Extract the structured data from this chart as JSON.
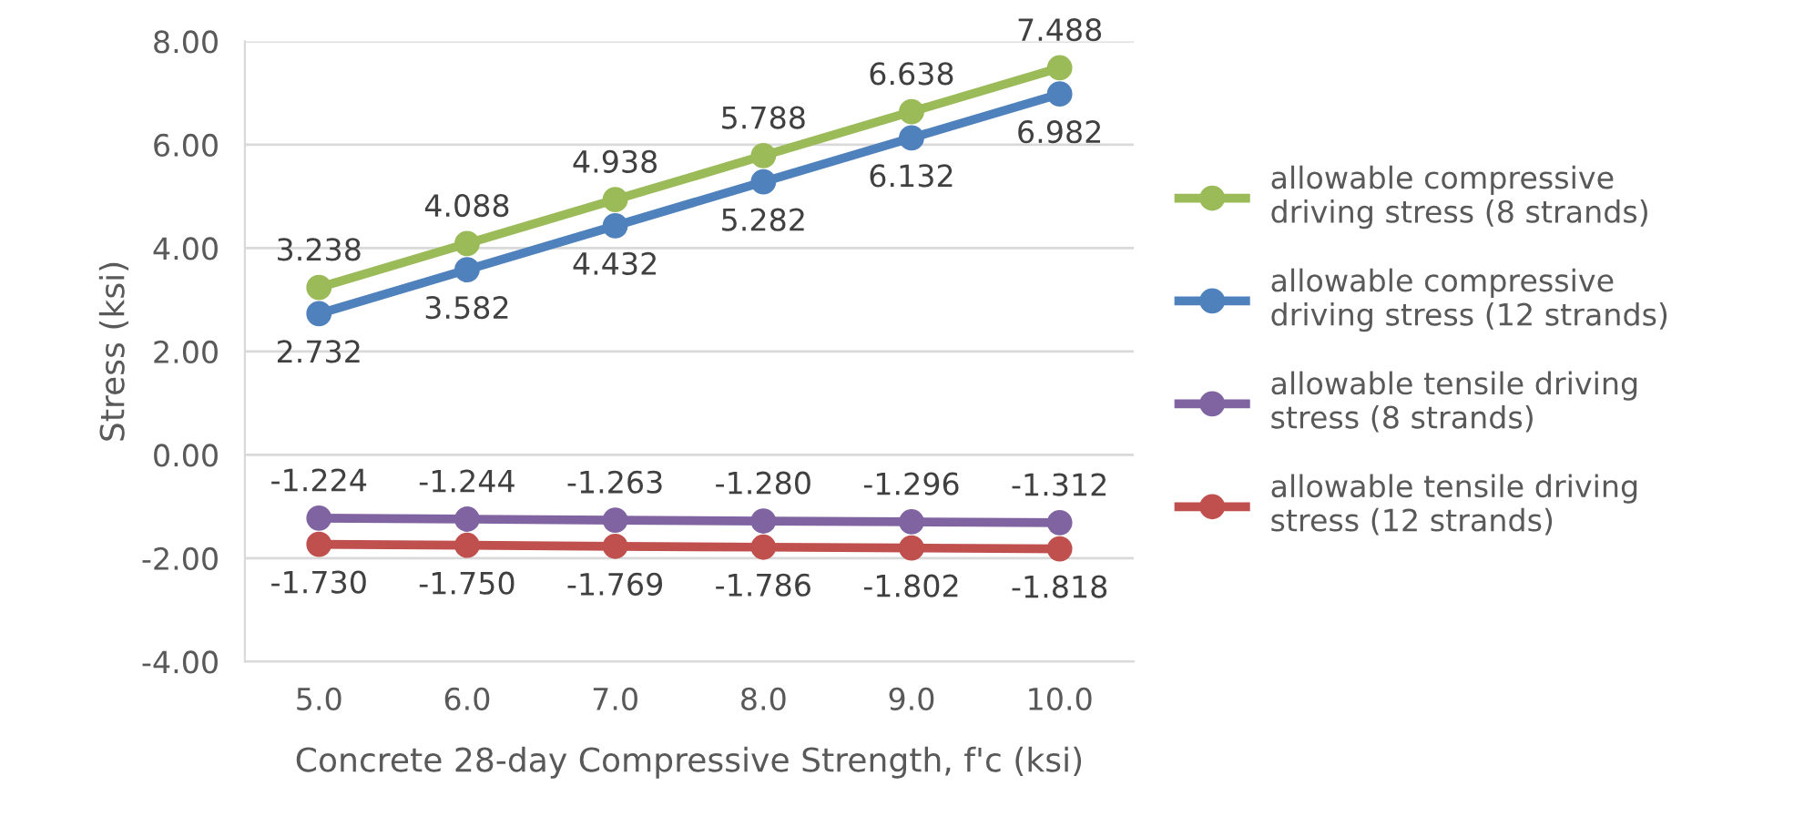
{
  "chart_data": {
    "type": "line",
    "xlabel": "Concrete 28-day Compressive Strength, f'c (ksi)",
    "ylabel": "Stress (ksi)",
    "categories": [
      "5.0",
      "6.0",
      "7.0",
      "8.0",
      "9.0",
      "10.0"
    ],
    "series": [
      {
        "name": "allowable compressive driving stress (8 strands)",
        "color": "#9bbb59",
        "values": [
          3.238,
          4.088,
          4.938,
          5.788,
          6.638,
          7.488
        ],
        "value_labels": [
          "3.238",
          "4.088",
          "4.938",
          "5.788",
          "6.638",
          "7.488"
        ]
      },
      {
        "name": "allowable compressive driving stress (12 strands)",
        "color": "#4f81bd",
        "values": [
          2.732,
          3.582,
          4.432,
          5.282,
          6.132,
          6.982
        ],
        "value_labels": [
          "2.732",
          "3.582",
          "4.432",
          "5.282",
          "6.132",
          "6.982"
        ]
      },
      {
        "name": "allowable tensile driving stress (8 strands)",
        "color": "#8064a2",
        "values": [
          -1.224,
          -1.244,
          -1.263,
          -1.28,
          -1.296,
          -1.312
        ],
        "value_labels": [
          "-1.224",
          "-1.244",
          "-1.263",
          "-1.280",
          "-1.296",
          "-1.312"
        ]
      },
      {
        "name": "allowable tensile driving stress (12 strands)",
        "color": "#c0504d",
        "values": [
          -1.73,
          -1.75,
          -1.769,
          -1.786,
          -1.802,
          -1.818
        ],
        "value_labels": [
          "-1.730",
          "-1.750",
          "-1.769",
          "-1.786",
          "-1.802",
          "-1.818"
        ]
      }
    ],
    "ylim": [
      -4,
      8
    ],
    "yticks": [
      {
        "value": -4,
        "label": "-4.00"
      },
      {
        "value": -2,
        "label": "-2.00"
      },
      {
        "value": 0,
        "label": "0.00"
      },
      {
        "value": 2,
        "label": "2.00"
      },
      {
        "value": 4,
        "label": "4.00"
      },
      {
        "value": 6,
        "label": "6.00"
      },
      {
        "value": 8,
        "label": "8.00"
      }
    ],
    "grid": "y",
    "legend": "right",
    "marker": "circle",
    "line_style": "solid"
  }
}
